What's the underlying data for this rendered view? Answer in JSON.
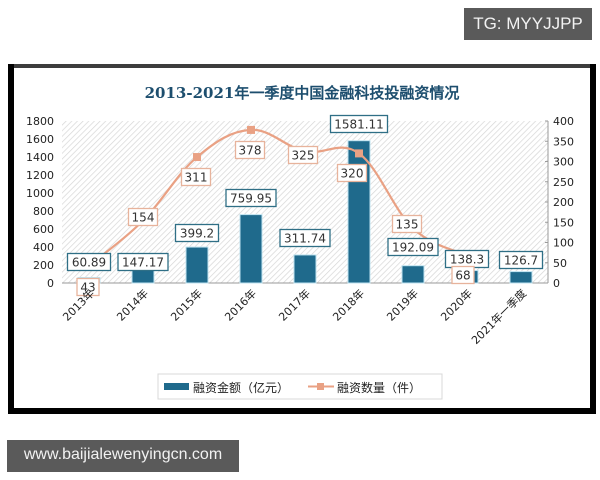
{
  "watermarks": {
    "top_right": "TG: MYYJJPP",
    "bottom_left": "www.baijialewenyingcn.com"
  },
  "chart_data": {
    "type": "bar+line",
    "title": "2013-2021年一季度中国金融科技投融资情况",
    "categories": [
      "2013年",
      "2014年",
      "2015年",
      "2016年",
      "2017年",
      "2018年",
      "2019年",
      "2020年",
      "2021年一季度"
    ],
    "series": [
      {
        "name": "融资金额（亿元）",
        "type": "bar",
        "axis": "left",
        "color": "#1f6a8c",
        "values": [
          60.89,
          147.17,
          399.2,
          759.95,
          311.74,
          1581.11,
          192.09,
          138.3,
          126.7
        ],
        "labels": [
          "60.89",
          "147.17",
          "399.2",
          "759.95",
          "311.74",
          "1581.11",
          "192.09",
          "138.3",
          "126.7"
        ]
      },
      {
        "name": "融资数量（件）",
        "type": "line",
        "axis": "right",
        "color": "#e9a184",
        "values": [
          43,
          154,
          311,
          378,
          325,
          320,
          135,
          68,
          null
        ],
        "labels": [
          "43",
          "154",
          "311",
          "378",
          "325",
          "320",
          "135",
          "68"
        ]
      }
    ],
    "left_axis": {
      "min": 0,
      "max": 1800,
      "step": 200,
      "ticks": [
        "0",
        "200",
        "400",
        "600",
        "800",
        "1000",
        "1200",
        "1400",
        "1600",
        "1800"
      ]
    },
    "right_axis": {
      "min": 0,
      "max": 400,
      "step": 50,
      "ticks": [
        "0",
        "50",
        "100",
        "150",
        "200",
        "250",
        "300",
        "350",
        "400"
      ]
    },
    "xlabel": "",
    "ylabel": "",
    "legend_position": "bottom",
    "grid": false,
    "plot_background": "diagonal-hatch"
  }
}
